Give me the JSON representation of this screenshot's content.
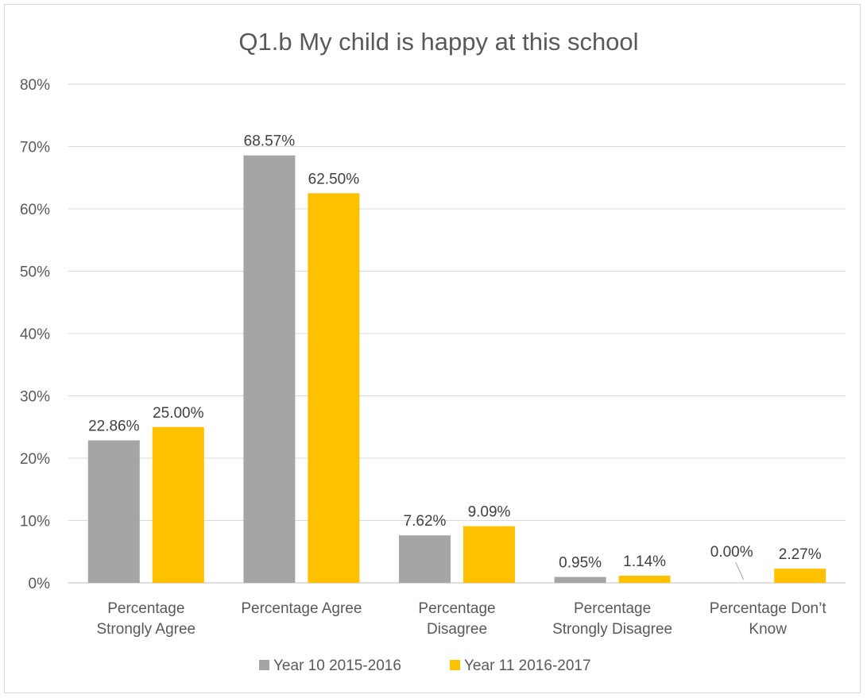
{
  "chart_data": {
    "type": "bar",
    "title": "Q1.b My child is happy at this school",
    "categories": [
      [
        "Percentage",
        "Strongly Agree"
      ],
      [
        "Percentage Agree"
      ],
      [
        "Percentage",
        "Disagree"
      ],
      [
        "Percentage",
        "Strongly Disagree"
      ],
      [
        "Percentage Don’t",
        "Know"
      ]
    ],
    "series": [
      {
        "name": "Year 10 2015-2016",
        "color": "#a5a5a5",
        "values": [
          22.86,
          68.57,
          7.62,
          0.95,
          0.0
        ],
        "labels": [
          "22.86%",
          "68.57%",
          "7.62%",
          "0.95%",
          "0.00%"
        ]
      },
      {
        "name": "Year 11 2016-2017",
        "color": "#ffc000",
        "values": [
          25.0,
          62.5,
          9.09,
          1.14,
          2.27
        ],
        "labels": [
          "25.00%",
          "62.50%",
          "9.09%",
          "1.14%",
          "2.27%"
        ]
      }
    ],
    "ylim": [
      0,
      80
    ],
    "y_ticks": [
      "0%",
      "10%",
      "20%",
      "30%",
      "40%",
      "50%",
      "60%",
      "70%",
      "80%"
    ],
    "gridlines": true,
    "legend_position": "bottom",
    "colors": {
      "grid": "#d9d9d9",
      "axis": "#bfbfbf",
      "leader": "#a6a6a6"
    }
  }
}
